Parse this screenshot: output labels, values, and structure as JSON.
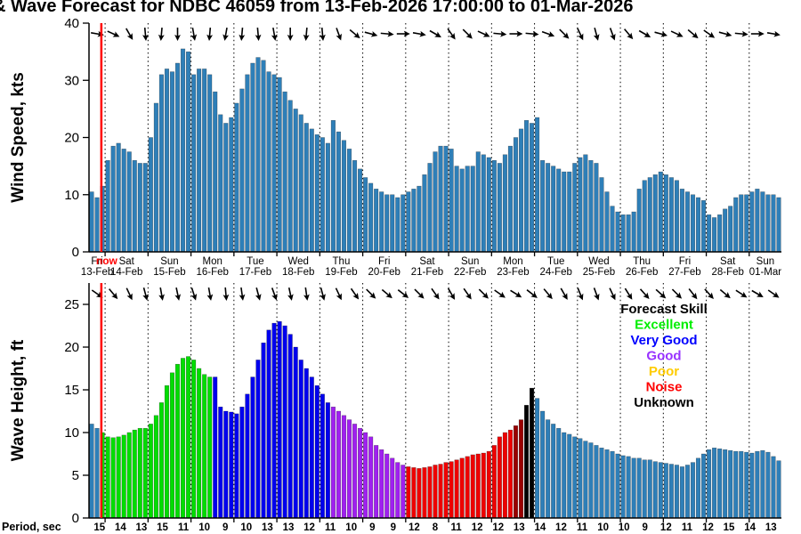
{
  "title": "& Wave Forecast for NDBC 46059 from 13-Feb-2026 17:00:00 to 01-Mar-2026",
  "chart_data": [
    {
      "type": "bar",
      "panel": "wind",
      "ylabel": "Wind Speed, kts",
      "ylim": [
        0,
        40
      ],
      "yticks": [
        0,
        10,
        20,
        30,
        40
      ],
      "grid": "dotted-vertical-day-lines",
      "bar_color": "#2e7fb8",
      "values": [
        10.5,
        9.5,
        11.5,
        16,
        18.5,
        19,
        18,
        17.5,
        16,
        15.5,
        15.5,
        20,
        26,
        31,
        32,
        31.5,
        33,
        35.5,
        35,
        31,
        32,
        32,
        31,
        28,
        24,
        22.5,
        23.5,
        26,
        28.5,
        31,
        33,
        34,
        33.5,
        31.5,
        31,
        30.5,
        28,
        26.5,
        25,
        24,
        22.5,
        21.5,
        20.5,
        20,
        19,
        23,
        21,
        19.5,
        18,
        16,
        14.5,
        13,
        12,
        11,
        10.5,
        10,
        10,
        9.5,
        10,
        10.5,
        11,
        11.5,
        13.5,
        15.5,
        17.5,
        18.5,
        18.5,
        18,
        15,
        14.5,
        15,
        15,
        17.5,
        17,
        16.5,
        16,
        15.5,
        17,
        18.5,
        20,
        21.5,
        23,
        22.5,
        23.5,
        16,
        15.5,
        15,
        14.5,
        14,
        14,
        15.5,
        16.5,
        17,
        16,
        15.5,
        13,
        10.5,
        8,
        7,
        6.5,
        6.5,
        7,
        11,
        12.5,
        13,
        13.5,
        14,
        13.5,
        13,
        12.5,
        11,
        10.5,
        10,
        9.5,
        9,
        6.5,
        6,
        6.5,
        7.5,
        8,
        9.5,
        10,
        10,
        10.5,
        11,
        10.5,
        10,
        10,
        9.5
      ],
      "direction_arrows_deg": [
        10,
        25,
        60,
        85,
        95,
        90,
        80,
        95,
        100,
        95,
        85,
        80,
        90,
        95,
        85,
        70,
        40,
        15,
        5,
        0,
        10,
        30,
        55,
        45,
        25,
        5,
        0,
        5,
        20,
        45,
        65,
        75,
        70,
        50,
        30,
        15,
        25,
        40,
        35,
        15,
        5,
        0,
        10
      ],
      "now_line": {
        "label": "now",
        "color": "#ff0000",
        "bar_index": 2.3
      },
      "day_boundary_bar_indices": [
        3,
        11,
        19,
        27,
        35,
        43,
        51,
        59,
        67,
        75,
        83,
        91,
        99,
        107,
        115,
        123
      ],
      "x_day_labels": [
        {
          "day": "Fri",
          "date": "13-Feb"
        },
        {
          "day": "Sat",
          "date": "14-Feb"
        },
        {
          "day": "Sun",
          "date": "15-Feb"
        },
        {
          "day": "Mon",
          "date": "16-Feb"
        },
        {
          "day": "Tue",
          "date": "17-Feb"
        },
        {
          "day": "Wed",
          "date": "18-Feb"
        },
        {
          "day": "Thu",
          "date": "19-Feb"
        },
        {
          "day": "Fri",
          "date": "20-Feb"
        },
        {
          "day": "Sat",
          "date": "21-Feb"
        },
        {
          "day": "Sun",
          "date": "22-Feb"
        },
        {
          "day": "Mon",
          "date": "23-Feb"
        },
        {
          "day": "Tue",
          "date": "24-Feb"
        },
        {
          "day": "Wed",
          "date": "25-Feb"
        },
        {
          "day": "Thu",
          "date": "26-Feb"
        },
        {
          "day": "Fri",
          "date": "27-Feb"
        },
        {
          "day": "Sat",
          "date": "28-Feb"
        },
        {
          "day": "Sun",
          "date": "01-Mar"
        }
      ]
    },
    {
      "type": "bar",
      "panel": "wave",
      "ylabel": "Wave Height, ft",
      "ylim": [
        0,
        27.5
      ],
      "yticks": [
        0,
        5,
        10,
        15,
        20,
        25
      ],
      "grid": "dotted-vertical-day-lines",
      "values": [
        11,
        10.5,
        10,
        9.5,
        9.4,
        9.5,
        9.7,
        10,
        10.3,
        10.5,
        10.5,
        11,
        12,
        13.5,
        15.5,
        17,
        18,
        18.7,
        18.9,
        18.5,
        17.5,
        16.8,
        16.5,
        16.5,
        13,
        12.5,
        12.4,
        12.2,
        13,
        14.5,
        16.5,
        18.5,
        20.5,
        22,
        22.8,
        23,
        22.5,
        21.5,
        20,
        18.5,
        17.5,
        16.5,
        15.5,
        14.5,
        13.5,
        13,
        12.5,
        12,
        11.5,
        11,
        10.5,
        10,
        9.5,
        8.5,
        8,
        7.5,
        7,
        6.5,
        6.2,
        6,
        5.9,
        5.8,
        5.9,
        6,
        6.2,
        6.3,
        6.5,
        6.6,
        6.8,
        7,
        7.2,
        7.4,
        7.5,
        7.6,
        7.8,
        8.5,
        9.5,
        10,
        10.3,
        10.8,
        11.5,
        13.2,
        15.2,
        14,
        12.5,
        11.5,
        11,
        10.5,
        10,
        9.8,
        9.5,
        9.3,
        9,
        8.8,
        8.5,
        8.2,
        8,
        7.8,
        7.5,
        7.3,
        7.2,
        7,
        7,
        6.8,
        6.8,
        6.6,
        6.5,
        6.4,
        6.3,
        6.2,
        6,
        6.2,
        6.5,
        7,
        7.5,
        8,
        8.2,
        8.1,
        8,
        7.9,
        7.8,
        7.8,
        7.7,
        7.6,
        7.8,
        7.9,
        7.7,
        7.2,
        6.7
      ],
      "skill_segments": [
        {
          "from": 0,
          "to": 1,
          "code": "d"
        },
        {
          "from": 2,
          "to": 22,
          "code": "e"
        },
        {
          "from": 23,
          "to": 44,
          "code": "v"
        },
        {
          "from": 45,
          "to": 58,
          "code": "g"
        },
        {
          "from": 59,
          "to": 78,
          "code": "n"
        },
        {
          "from": 79,
          "to": 80,
          "code": "n2"
        },
        {
          "from": 81,
          "to": 82,
          "code": "u"
        },
        {
          "from": 83,
          "to": 128,
          "code": "d"
        }
      ],
      "skill_colors": {
        "d": "#2e7fb8",
        "e": "#00dd00",
        "v": "#0000ee",
        "g": "#a020f0",
        "p": "#ffd700",
        "n": "#ee0000",
        "n2": "#990000",
        "u": "#000000"
      },
      "direction_arrows_deg": [
        35,
        50,
        65,
        75,
        80,
        78,
        72,
        80,
        85,
        82,
        75,
        70,
        78,
        82,
        75,
        65,
        55,
        45,
        40,
        38,
        45,
        55,
        60,
        55,
        45,
        35,
        32,
        38,
        50,
        60,
        68,
        70,
        65,
        58,
        48,
        42,
        45,
        52,
        48,
        40,
        33,
        30,
        35
      ],
      "legend": {
        "title": "Forecast Skill",
        "position": "top-right",
        "entries": [
          {
            "label": "Excellent",
            "color": "#00ee00"
          },
          {
            "label": "Very Good",
            "color": "#0000ff"
          },
          {
            "label": "Good",
            "color": "#9933ff"
          },
          {
            "label": "Poor",
            "color": "#ffcc00"
          },
          {
            "label": "Noise",
            "color": "#ff0000"
          },
          {
            "label": "Unknown",
            "color": "#000000"
          }
        ]
      },
      "period_row": {
        "label": "Period, sec",
        "values": [
          15,
          14,
          13,
          15,
          11,
          10,
          9,
          10,
          13,
          13,
          12,
          11,
          10,
          9,
          9,
          12,
          8,
          11,
          12,
          12,
          13,
          14,
          12,
          11,
          10,
          10,
          9,
          12,
          11,
          12,
          15,
          14,
          13
        ]
      }
    }
  ]
}
